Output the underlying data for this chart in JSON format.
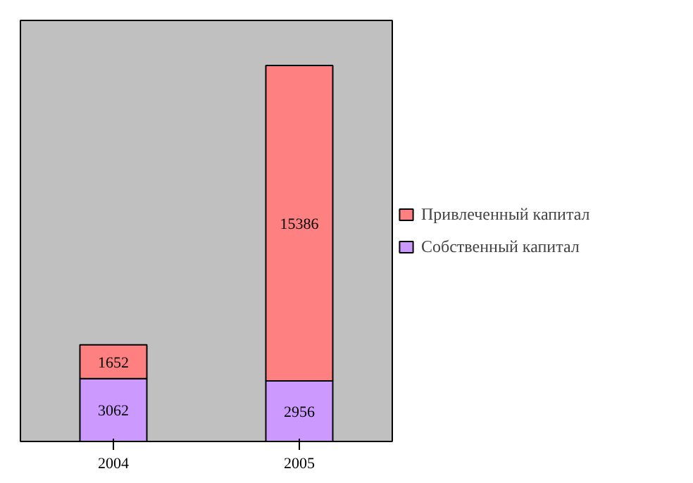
{
  "chart_data": {
    "type": "bar",
    "stacked": true,
    "categories": [
      "2004",
      "2005"
    ],
    "series": [
      {
        "name": "Собственный капитал",
        "color": "#cc99ff",
        "values": [
          3062,
          2956
        ]
      },
      {
        "name": "Привлеченный капитал",
        "color": "#ff8080",
        "values": [
          1652,
          15386
        ]
      }
    ],
    "data_labels": true,
    "legend": "right",
    "grid": false
  }
}
